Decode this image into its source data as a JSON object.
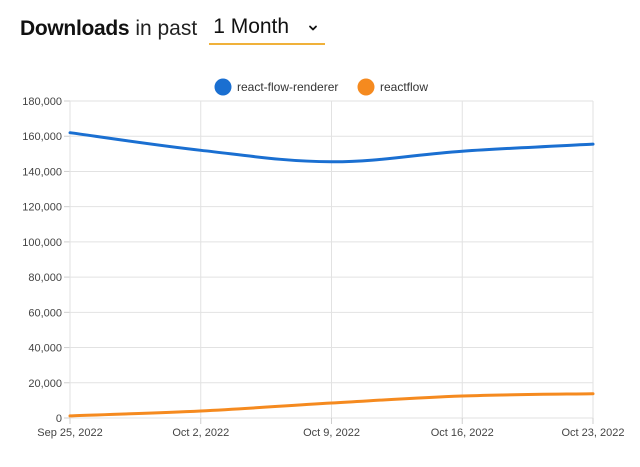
{
  "header": {
    "title_bold": "Downloads",
    "title_rest": "in past",
    "period_value": "1 Month"
  },
  "colors": {
    "accent_underline": "#f0b13a",
    "series_1": "#1a6fd1",
    "series_2": "#f58a1f",
    "grid": "#e2e2e2"
  },
  "chart_data": {
    "type": "line",
    "x": [
      "Sep 25, 2022",
      "Oct 2, 2022",
      "Oct 9, 2022",
      "Oct 16, 2022",
      "Oct 23, 2022"
    ],
    "series": [
      {
        "name": "react-flow-renderer",
        "color": "#1a6fd1",
        "values": [
          162000,
          152000,
          145500,
          151500,
          155500
        ]
      },
      {
        "name": "reactflow",
        "color": "#f58a1f",
        "values": [
          1200,
          4000,
          8500,
          12500,
          13800
        ]
      }
    ],
    "y_ticks": [
      "0",
      "20,000",
      "40,000",
      "60,000",
      "80,000",
      "100,000",
      "120,000",
      "140,000",
      "160,000",
      "180,000"
    ],
    "ylim": [
      0,
      180000
    ],
    "grid": true,
    "legend_position": "top-center"
  }
}
